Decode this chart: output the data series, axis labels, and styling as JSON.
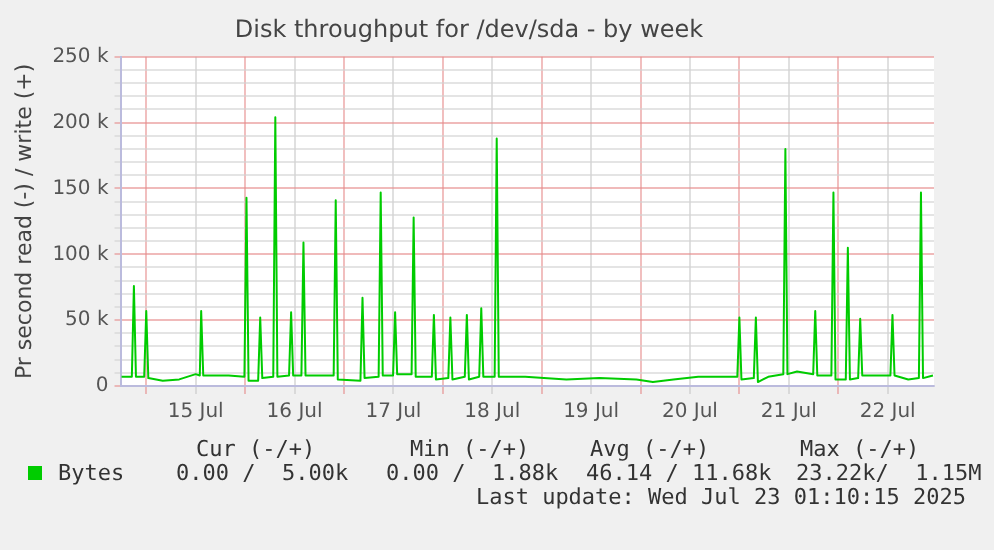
{
  "chart_data": {
    "type": "line",
    "title": "Disk throughput for /dev/sda - by week",
    "ylabel": "Pr second read (-) / write (+)",
    "xlim": [
      "2025-07-14T17:45",
      "2025-07-22T23:15"
    ],
    "xticks": [
      {
        "value": "2025-07-15T00:00",
        "label": null
      },
      {
        "value": "2025-07-15T12:00",
        "label": "15 Jul"
      },
      {
        "value": "2025-07-16T00:00",
        "label": null
      },
      {
        "value": "2025-07-16T12:00",
        "label": "16 Jul"
      },
      {
        "value": "2025-07-17T00:00",
        "label": null
      },
      {
        "value": "2025-07-17T12:00",
        "label": "17 Jul"
      },
      {
        "value": "2025-07-18T00:00",
        "label": null
      },
      {
        "value": "2025-07-18T12:00",
        "label": "18 Jul"
      },
      {
        "value": "2025-07-19T00:00",
        "label": null
      },
      {
        "value": "2025-07-19T12:00",
        "label": "19 Jul"
      },
      {
        "value": "2025-07-20T00:00",
        "label": null
      },
      {
        "value": "2025-07-20T12:00",
        "label": "20 Jul"
      },
      {
        "value": "2025-07-21T00:00",
        "label": null
      },
      {
        "value": "2025-07-21T12:00",
        "label": "21 Jul"
      },
      {
        "value": "2025-07-22T00:00",
        "label": null
      },
      {
        "value": "2025-07-22T12:00",
        "label": "22 Jul"
      }
    ],
    "ylim": [
      0,
      250000
    ],
    "yticks": [
      {
        "value": 0,
        "label": "0"
      },
      {
        "value": 10000,
        "label": null
      },
      {
        "value": 20000,
        "label": null
      },
      {
        "value": 30000,
        "label": null
      },
      {
        "value": 40000,
        "label": null
      },
      {
        "value": 50000,
        "label": "50 k"
      },
      {
        "value": 60000,
        "label": null
      },
      {
        "value": 70000,
        "label": null
      },
      {
        "value": 80000,
        "label": null
      },
      {
        "value": 90000,
        "label": null
      },
      {
        "value": 100000,
        "label": "100 k"
      },
      {
        "value": 110000,
        "label": null
      },
      {
        "value": 120000,
        "label": null
      },
      {
        "value": 130000,
        "label": null
      },
      {
        "value": 140000,
        "label": null
      },
      {
        "value": 150000,
        "label": "150 k"
      },
      {
        "value": 160000,
        "label": null
      },
      {
        "value": 170000,
        "label": null
      },
      {
        "value": 180000,
        "label": null
      },
      {
        "value": 190000,
        "label": null
      },
      {
        "value": 200000,
        "label": "200 k"
      },
      {
        "value": 210000,
        "label": null
      },
      {
        "value": 220000,
        "label": null
      },
      {
        "value": 230000,
        "label": null
      },
      {
        "value": 240000,
        "label": null
      },
      {
        "value": 250000,
        "label": "250 k"
      }
    ],
    "grid": true,
    "legend": "bottom",
    "marker": "none",
    "line_style": "solid",
    "series": [
      {
        "name": "Bytes",
        "color": "#00cc00",
        "x": [
          "2025-07-14T18:00",
          "2025-07-14T20:30",
          "2025-07-14T21:00",
          "2025-07-14T21:30",
          "2025-07-14T23:30",
          "2025-07-15T00:00",
          "2025-07-15T00:30",
          "2025-07-15T04:00",
          "2025-07-15T08:00",
          "2025-07-15T12:00",
          "2025-07-15T13:00",
          "2025-07-15T13:20",
          "2025-07-15T13:50",
          "2025-07-15T20:00",
          "2025-07-15T23:50",
          "2025-07-16T00:20",
          "2025-07-16T00:50",
          "2025-07-16T03:10",
          "2025-07-16T03:40",
          "2025-07-16T04:10",
          "2025-07-16T06:50",
          "2025-07-16T07:20",
          "2025-07-16T07:50",
          "2025-07-16T10:40",
          "2025-07-16T11:10",
          "2025-07-16T11:40",
          "2025-07-16T13:40",
          "2025-07-16T14:10",
          "2025-07-16T14:40",
          "2025-07-16T21:30",
          "2025-07-16T22:00",
          "2025-07-16T22:30",
          "2025-07-17T04:00",
          "2025-07-17T04:30",
          "2025-07-17T05:00",
          "2025-07-17T08:25",
          "2025-07-17T08:55",
          "2025-07-17T09:25",
          "2025-07-17T11:55",
          "2025-07-17T12:25",
          "2025-07-17T12:55",
          "2025-07-17T16:25",
          "2025-07-17T16:55",
          "2025-07-17T17:25",
          "2025-07-17T21:20",
          "2025-07-17T21:50",
          "2025-07-17T22:20",
          "2025-07-18T01:20",
          "2025-07-18T01:50",
          "2025-07-18T02:20",
          "2025-07-18T05:20",
          "2025-07-18T05:50",
          "2025-07-18T06:20",
          "2025-07-18T08:50",
          "2025-07-18T09:20",
          "2025-07-18T09:50",
          "2025-07-18T12:35",
          "2025-07-18T13:05",
          "2025-07-18T13:35",
          "2025-07-18T20:00",
          "2025-07-19T06:00",
          "2025-07-19T14:00",
          "2025-07-19T23:00",
          "2025-07-20T03:00",
          "2025-07-20T08:00",
          "2025-07-20T14:00",
          "2025-07-20T23:30",
          "2025-07-21T00:00",
          "2025-07-21T00:30",
          "2025-07-21T03:30",
          "2025-07-21T04:00",
          "2025-07-21T04:30",
          "2025-07-21T07:00",
          "2025-07-21T10:40",
          "2025-07-21T11:10",
          "2025-07-21T11:40",
          "2025-07-21T14:00",
          "2025-07-21T17:55",
          "2025-07-21T18:25",
          "2025-07-21T18:55",
          "2025-07-21T22:20",
          "2025-07-21T22:50",
          "2025-07-21T23:20",
          "2025-07-22T01:50",
          "2025-07-22T02:20",
          "2025-07-22T02:50",
          "2025-07-22T04:50",
          "2025-07-22T05:20",
          "2025-07-22T05:50",
          "2025-07-22T12:40",
          "2025-07-22T13:10",
          "2025-07-22T13:40",
          "2025-07-22T17:00",
          "2025-07-22T19:35",
          "2025-07-22T20:05",
          "2025-07-22T20:35",
          "2025-07-22T23:00"
        ],
        "values": [
          7000,
          7000,
          76000,
          7000,
          7000,
          57000,
          6000,
          4000,
          5000,
          9000,
          8000,
          57000,
          8000,
          8000,
          7000,
          143000,
          4000,
          4000,
          52000,
          6000,
          7000,
          204000,
          7000,
          8000,
          56000,
          8000,
          8000,
          109000,
          8000,
          8000,
          141000,
          5000,
          4000,
          67000,
          6000,
          7000,
          147000,
          8000,
          8000,
          56000,
          9000,
          9000,
          128000,
          7000,
          7000,
          54000,
          5000,
          6000,
          52000,
          5000,
          7000,
          54000,
          5000,
          7000,
          59000,
          7000,
          7000,
          188000,
          7000,
          7000,
          5000,
          6000,
          5000,
          3000,
          5000,
          7000,
          7000,
          52000,
          5000,
          6000,
          52000,
          3000,
          7000,
          9000,
          180000,
          9000,
          11000,
          9000,
          57000,
          8000,
          8000,
          147000,
          5000,
          5000,
          105000,
          5000,
          6000,
          51000,
          8000,
          8000,
          54000,
          8000,
          5000,
          6000,
          147000,
          6000,
          8000
        ]
      }
    ],
    "annotations": [
      "Cur (-/+)",
      "Min (-/+)",
      "Avg (-/+)",
      "Max (-/+)",
      "0.00 /  5.00k",
      "0.00 /  1.88k",
      "46.14 / 11.68k",
      "23.22k/  1.15M",
      "Last update: Wed Jul 23 01:10:15 2025"
    ]
  }
}
